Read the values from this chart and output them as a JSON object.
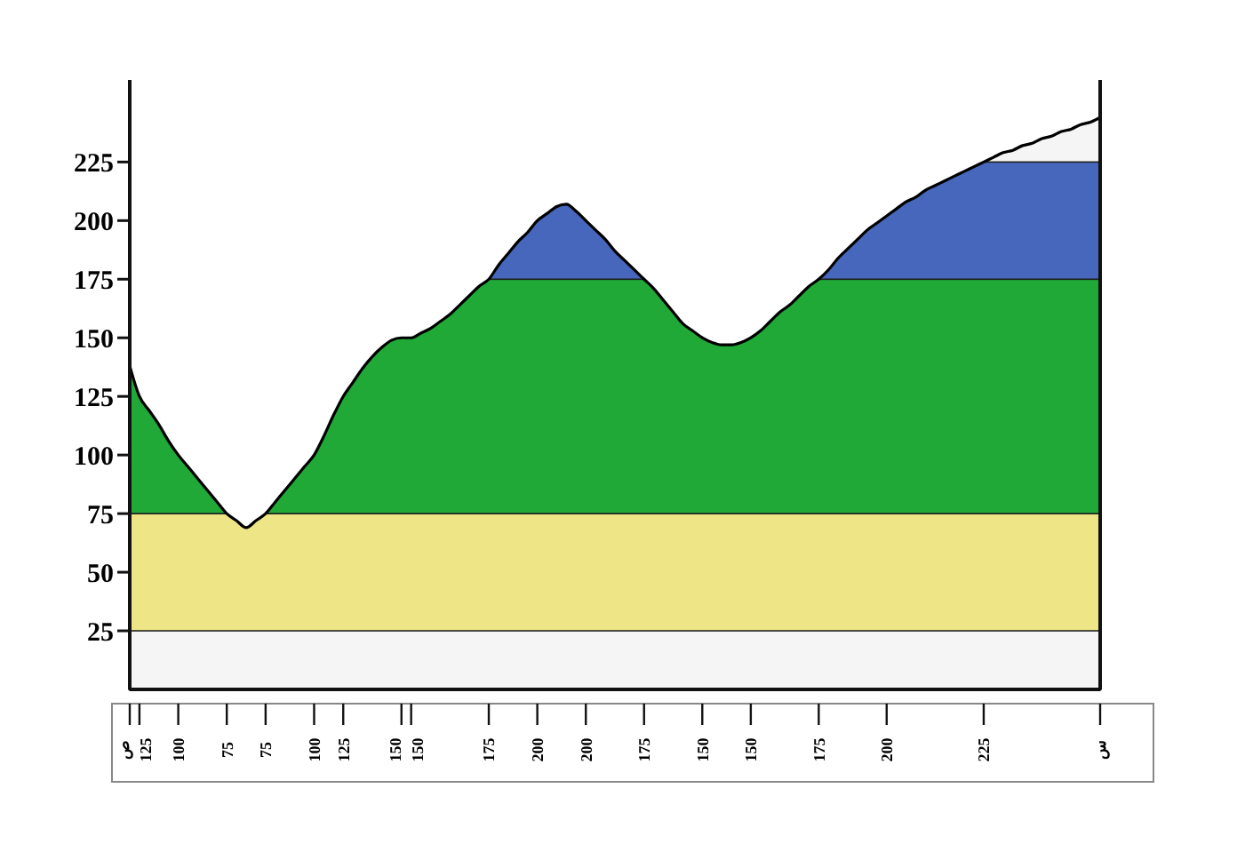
{
  "chart_data": {
    "type": "area",
    "categories": [
      "ص",
      "125",
      null,
      null,
      null,
      "100",
      null,
      null,
      null,
      null,
      "75",
      null,
      null,
      null,
      "75",
      null,
      null,
      null,
      null,
      "100",
      null,
      null,
      "125",
      null,
      null,
      null,
      null,
      null,
      "150",
      "150",
      null,
      null,
      null,
      null,
      null,
      null,
      null,
      "175",
      null,
      null,
      null,
      null,
      "200",
      null,
      null,
      null,
      null,
      "200",
      null,
      null,
      null,
      null,
      null,
      "175",
      null,
      null,
      null,
      null,
      null,
      "150",
      null,
      null,
      null,
      null,
      "150",
      null,
      null,
      null,
      null,
      null,
      null,
      "175",
      null,
      null,
      null,
      null,
      null,
      null,
      "200",
      null,
      null,
      null,
      null,
      null,
      null,
      null,
      null,
      null,
      "225",
      null,
      null,
      null,
      null,
      null,
      null,
      null,
      null,
      null,
      null,
      null,
      "س"
    ],
    "series": [
      {
        "color": "#000000",
        "values": [
          138,
          125,
          119,
          113,
          106,
          100,
          95,
          90,
          85,
          80,
          75,
          72,
          69,
          72,
          75,
          80,
          85,
          90,
          95,
          100,
          108,
          117,
          125,
          131,
          137,
          142,
          146,
          149,
          150,
          150,
          152,
          154,
          157,
          160,
          164,
          168,
          172,
          175,
          181,
          186,
          191,
          195,
          200,
          203,
          206,
          207,
          204,
          200,
          196,
          192,
          187,
          183,
          179,
          175,
          171,
          166,
          161,
          156,
          153,
          150,
          148,
          147,
          147,
          148,
          150,
          153,
          157,
          161,
          164,
          168,
          172,
          175,
          179,
          184,
          188,
          192,
          196,
          199,
          202,
          205,
          208,
          210,
          213,
          215,
          217,
          219,
          221,
          223,
          225,
          227,
          229,
          230,
          232,
          233,
          235,
          236,
          238,
          239,
          241,
          242,
          244
        ]
      }
    ],
    "ylim": [
      0,
      260
    ],
    "yticks": [
      25,
      50,
      75,
      100,
      125,
      150,
      175,
      200,
      225
    ],
    "bands": [
      {
        "axis": "y",
        "from": 25,
        "to": 75,
        "color": "#f7ef8c"
      },
      {
        "axis": "y",
        "from": 75,
        "to": 175,
        "color": "#22b03a"
      },
      {
        "axis": "y",
        "from": 175,
        "to": 225,
        "color": "#4a6cc4"
      }
    ],
    "grid": false,
    "marker": "none",
    "line_style": "solid"
  }
}
